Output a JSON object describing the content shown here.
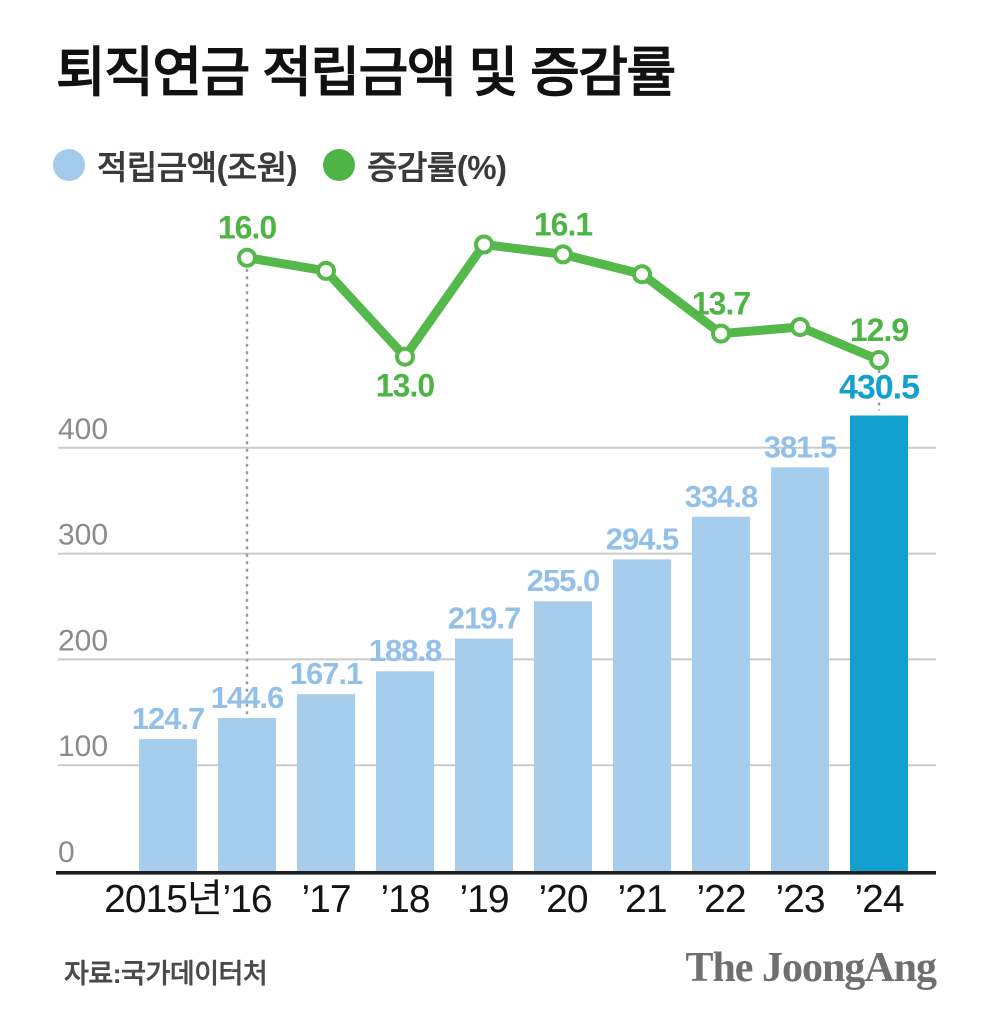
{
  "title": "퇴직연금 적립금액 및 증감률",
  "legend": {
    "items": [
      {
        "label": "적립금액(조원)",
        "color": "#a2cbec"
      },
      {
        "label": "증감률(%)",
        "color": "#4db445"
      }
    ]
  },
  "source": "자료:국가데이터처",
  "logo": "The JoongAng",
  "colors": {
    "bar": "#a7cdec",
    "bar_label": "#93c0e8",
    "highlight_bar": "#12a0cf",
    "highlight_label": "#12a0cf",
    "line": "#54b84a",
    "line_label": "#4eb445",
    "grid": "#cbcbcb",
    "axis": "#1e1e1e",
    "y_tick": "#8b8b8b",
    "x_label": "#141414",
    "dashed_connector": "#9b9b9b",
    "point_fill": "#ffffff"
  },
  "chart_data": {
    "type": "bar+line",
    "title": "퇴직연금 적립금액 및 증감률",
    "categories": [
      "2015년",
      "’16",
      "’17",
      "’18",
      "’19",
      "’20",
      "’21",
      "’22",
      "’23",
      "’24"
    ],
    "series": [
      {
        "name": "적립금액",
        "unit": "조원",
        "type": "bar",
        "values": [
          124.7,
          144.6,
          167.1,
          188.8,
          219.7,
          255.0,
          294.5,
          334.8,
          381.5,
          430.5
        ],
        "value_labels": [
          "124.7",
          "144.6",
          "167.1",
          "188.8",
          "219.7",
          "255.0",
          "294.5",
          "334.8",
          "381.5",
          "430.5"
        ],
        "highlight_index": 9
      },
      {
        "name": "증감률",
        "unit": "%",
        "type": "line",
        "values": [
          null,
          16.0,
          15.6,
          13.0,
          16.4,
          16.1,
          15.5,
          13.7,
          13.9,
          12.9
        ],
        "point_labels": [
          {
            "index": 1,
            "text": "16.0",
            "side": "above"
          },
          {
            "index": 3,
            "text": "13.0",
            "side": "below"
          },
          {
            "index": 5,
            "text": "16.1",
            "side": "above"
          },
          {
            "index": 7,
            "text": "13.7",
            "side": "above"
          },
          {
            "index": 9,
            "text": "12.9",
            "side": "above"
          }
        ]
      }
    ],
    "y_axis": {
      "ticks": [
        0,
        100,
        200,
        300,
        400
      ],
      "range": [
        0,
        430.5
      ]
    },
    "grid": true,
    "legend_position": "top",
    "annotations": {
      "dashed_connectors": [
        {
          "category_index": 1
        },
        {
          "category_index": 9
        }
      ]
    }
  }
}
